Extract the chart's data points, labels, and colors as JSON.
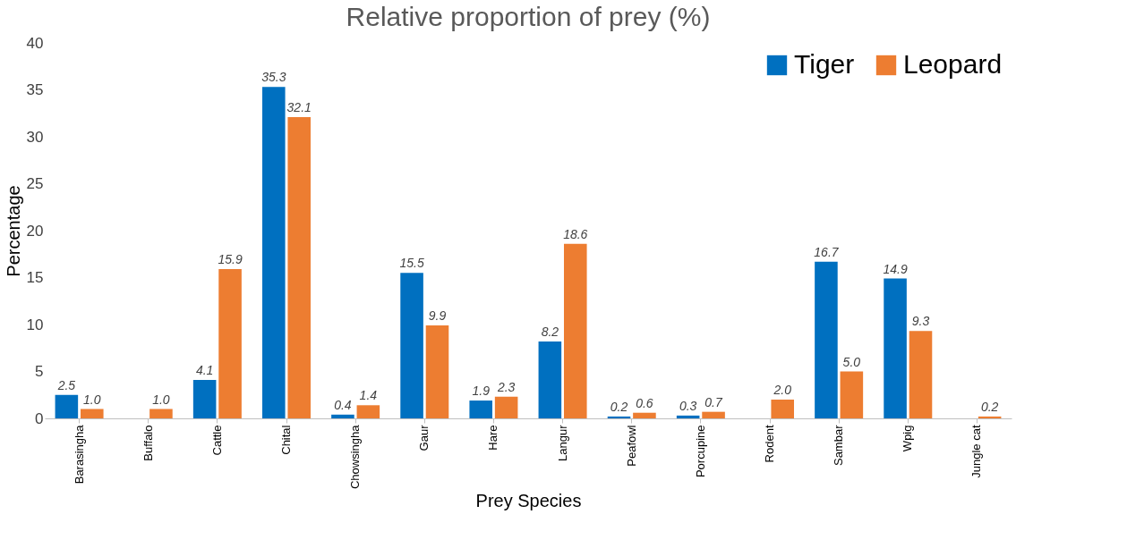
{
  "chart_data": {
    "type": "bar",
    "title": "Relative proportion of prey (%)",
    "xlabel": "Prey Species",
    "ylabel": "Percentage",
    "categories": [
      "Barasingha",
      "Buffalo",
      "Cattle",
      "Chital",
      "Chowsingha",
      "Gaur",
      "Hare",
      "Langur",
      "Peafowl",
      "Porcupine",
      "Rodent",
      "Sambar",
      "Wpig",
      "Jungle cat"
    ],
    "series": [
      {
        "name": "Tiger",
        "color": "#0070c0",
        "values": [
          2.5,
          null,
          4.1,
          35.3,
          0.4,
          15.5,
          1.9,
          8.2,
          0.2,
          0.3,
          null,
          16.7,
          14.9,
          null
        ],
        "value_labels": [
          "2.5",
          null,
          "4.1",
          "35.3",
          "0.4",
          "15.5",
          "1.9",
          "8.2",
          "0.2",
          "0.3",
          null,
          "16.7",
          "14.9",
          null
        ]
      },
      {
        "name": "Leopard",
        "color": "#ed7d31",
        "values": [
          1.0,
          1.0,
          15.9,
          32.1,
          1.4,
          9.9,
          2.3,
          18.6,
          0.6,
          0.7,
          2.0,
          5.0,
          9.3,
          0.2
        ],
        "value_labels": [
          "1.0",
          "1.0",
          "15.9",
          "32.1",
          "1.4",
          "9.9",
          "2.3",
          "18.6",
          "0.6",
          "0.7",
          "2.0",
          "5.0",
          "9.3",
          "0.2"
        ]
      }
    ],
    "ylim": [
      0,
      40
    ],
    "yticks": [
      0,
      5,
      10,
      15,
      20,
      25,
      30,
      35,
      40
    ],
    "grid": false,
    "legend": "top right"
  }
}
